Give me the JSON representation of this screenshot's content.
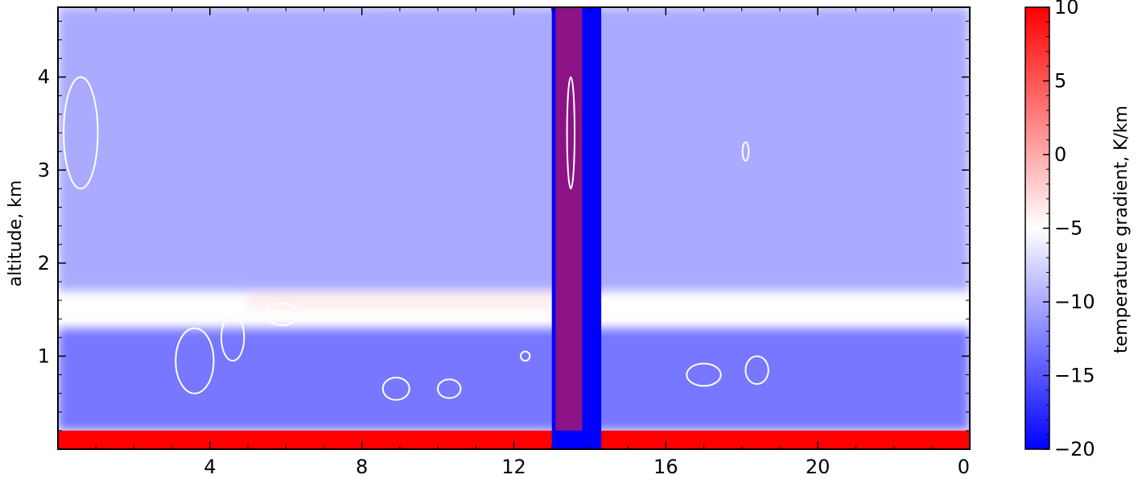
{
  "chart_data": {
    "type": "heatmap",
    "title": "",
    "xlabel": "",
    "ylabel": "altitude, km",
    "colorbar_label": "temperature gradient, K/km",
    "x_ticks": [
      "4",
      "8",
      "12",
      "16",
      "20",
      "0"
    ],
    "x_tick_values": [
      4,
      8,
      12,
      16,
      20,
      24
    ],
    "xlim": [
      0,
      24
    ],
    "y_ticks": [
      "1",
      "2",
      "3",
      "4"
    ],
    "y_tick_values": [
      1,
      2,
      3,
      4
    ],
    "ylim": [
      0.0,
      4.75
    ],
    "colorbar_ticks": [
      "10",
      "5",
      "0",
      "−5",
      "−10",
      "−15",
      "−20"
    ],
    "colorbar_tick_values": [
      10,
      5,
      0,
      -5,
      -10,
      -15,
      -20
    ],
    "colorbar_range": [
      -20,
      10
    ],
    "colormap": [
      "#0000ff",
      "#ffffff",
      "#ff0000"
    ],
    "contour_color": "#ffffff",
    "grid": false,
    "features": [
      {
        "name": "surface layer",
        "x_range": [
          0,
          24
        ],
        "y_range": [
          0,
          0.2
        ],
        "value": 10
      },
      {
        "name": "boundary layer",
        "x_range": [
          0,
          24
        ],
        "y_range": [
          0.2,
          1.3
        ],
        "value": -13
      },
      {
        "name": "inversion band",
        "x_range": [
          5,
          14
        ],
        "y_range": [
          1.5,
          1.7
        ],
        "value": -4
      },
      {
        "name": "free troposphere",
        "x_range": [
          0,
          24
        ],
        "y_range": [
          1.7,
          4.75
        ],
        "value": -10
      },
      {
        "name": "cloud column",
        "x_range": [
          13,
          14.3
        ],
        "y_range": [
          0,
          4.75
        ],
        "value": -20
      },
      {
        "name": "cloud column edges",
        "x_range": [
          13.1,
          13.8
        ],
        "y_range": [
          0.2,
          4.75
        ],
        "value": 8
      }
    ]
  }
}
